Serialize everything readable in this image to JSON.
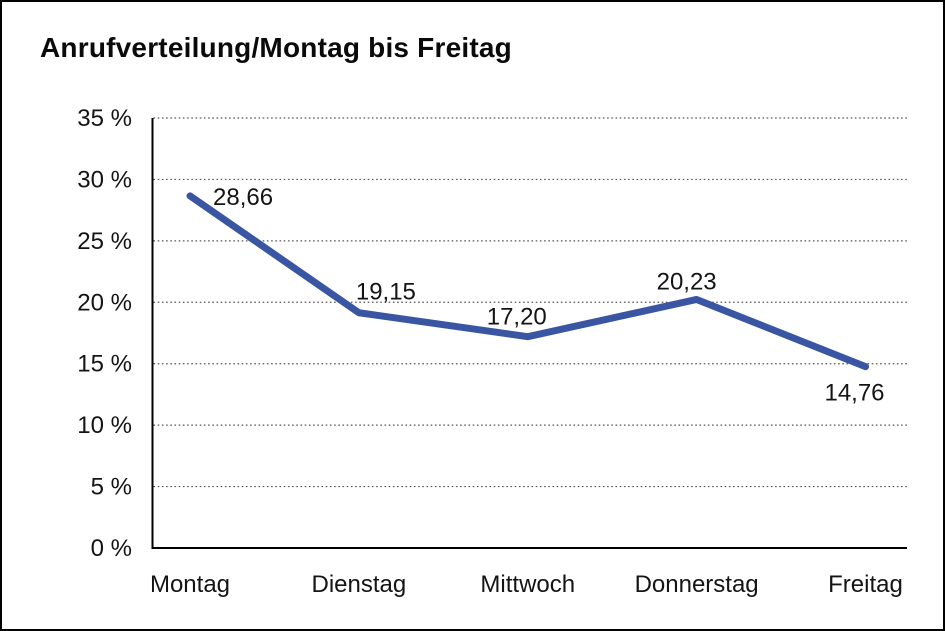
{
  "header": {
    "title": "Anrufverteilung/Montag bis Freitag"
  },
  "chart_data": {
    "type": "line",
    "title": "Anrufverteilung/Montag bis Freitag",
    "categories": [
      "Montag",
      "Dienstag",
      "Mittwoch",
      "Donnerstag",
      "Freitag"
    ],
    "values": [
      28.66,
      19.15,
      17.2,
      20.23,
      14.76
    ],
    "value_labels": [
      "28,66",
      "19,15",
      "17,20",
      "20,23",
      "14,76"
    ],
    "xlabel": "",
    "ylabel": "",
    "ylim": [
      0,
      35
    ],
    "ytick_step": 5,
    "ytick_labels": [
      "0 %",
      "5 %",
      "10 %",
      "15 %",
      "20 %",
      "25 %",
      "30 %",
      "35 %"
    ],
    "grid": "horizontal-dotted",
    "legend": "none"
  },
  "colors": {
    "line": "#3A56A2",
    "axis": "#000000",
    "gridline": "#555555",
    "text": "#141414",
    "background": "#FFFFFF"
  }
}
